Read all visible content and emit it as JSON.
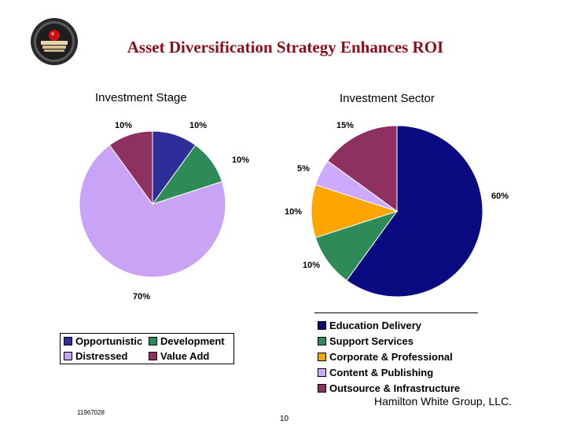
{
  "title": "Asset Diversification Strategy Enhances ROI",
  "colors": {
    "title": "#8b0d1a",
    "opportunistic": "#2e2e9a",
    "development": "#2e8b57",
    "distressed": "#c9a3f5",
    "value_add": "#8e3060",
    "education": "#0a0a80",
    "support": "#2e8b57",
    "corporate": "#ffa500",
    "content": "#ccaaff",
    "outsource": "#8e3060"
  },
  "chart_data": [
    {
      "type": "pie",
      "title": "Investment Stage",
      "slices": [
        {
          "label": "Opportunistic",
          "value": 10,
          "pct_label": "10%",
          "color": "#2e2e9a"
        },
        {
          "label": "Development",
          "value": 10,
          "pct_label": "10%",
          "color": "#2e8b57"
        },
        {
          "label": "Distressed",
          "value": 70,
          "pct_label": "70%",
          "color": "#c9a3f5"
        },
        {
          "label": "Value Add",
          "value": 10,
          "pct_label": "10%",
          "color": "#8e3060"
        }
      ],
      "legend_placement": "bottom"
    },
    {
      "type": "pie",
      "title": "Investment Sector",
      "slices": [
        {
          "label": "Education Delivery",
          "value": 60,
          "pct_label": "60%",
          "color": "#0a0a80"
        },
        {
          "label": "Support Services",
          "value": 10,
          "pct_label": "10%",
          "color": "#2e8b57"
        },
        {
          "label": "Corporate & Professional",
          "value": 10,
          "pct_label": "10%",
          "color": "#ffa500"
        },
        {
          "label": "Content & Publishing",
          "value": 5,
          "pct_label": "5%",
          "color": "#ccaaff"
        },
        {
          "label": "Outsource & Infrastructure",
          "value": 15,
          "pct_label": "15%",
          "color": "#8e3060"
        }
      ],
      "legend_placement": "bottom-right"
    }
  ],
  "footer": {
    "company": "Hamilton White Group, LLC.",
    "doc_id": "11967028",
    "page": "10"
  }
}
